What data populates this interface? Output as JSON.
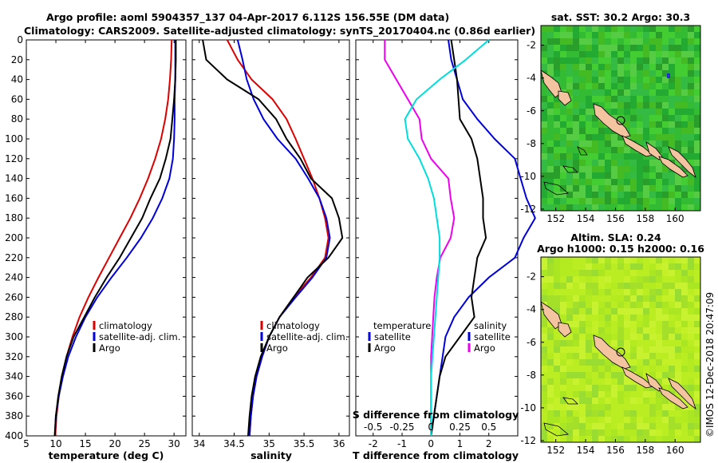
{
  "header": {
    "line1": "Argo profile: aoml 5904357_137 04-Apr-2017 6.112S 156.55E (DM data)",
    "line2": "Climatology: CARS2009. Satellite-adjusted climatology: synTS_20170404.nc (0.86d earlier)"
  },
  "colors": {
    "climatology": "#dd0000",
    "satellite": "#0000dd",
    "argo": "#000000",
    "s_diff": "#ee00ee",
    "t_diff": "#00dddd"
  },
  "chart_data": [
    {
      "type": "line",
      "id": "temperature",
      "xlabel": "temperature (deg C)",
      "ylabel": "",
      "xlim": [
        5,
        32
      ],
      "ylim": [
        400,
        0
      ],
      "xticks": [
        "5",
        "10",
        "15",
        "20",
        "25",
        "30"
      ],
      "yticks": [
        "0",
        "20",
        "40",
        "60",
        "80",
        "100",
        "120",
        "140",
        "160",
        "180",
        "200",
        "220",
        "240",
        "260",
        "280",
        "300",
        "320",
        "340",
        "360",
        "380",
        "400"
      ],
      "legend": [
        "climatology",
        "satellite-adj. clim.",
        "Argo"
      ],
      "series": [
        {
          "name": "climatology",
          "color": "#dd0000",
          "depth": [
            0,
            20,
            40,
            60,
            80,
            100,
            120,
            140,
            160,
            180,
            200,
            220,
            240,
            260,
            280,
            300,
            320,
            340,
            360,
            380,
            400
          ],
          "values": [
            29.6,
            29.5,
            29.3,
            29.0,
            28.5,
            27.8,
            26.8,
            25.6,
            24.2,
            22.6,
            20.8,
            19.0,
            17.2,
            15.5,
            14.0,
            12.8,
            11.8,
            11.0,
            10.5,
            10.1,
            9.9
          ]
        },
        {
          "name": "satellite-adj. clim.",
          "color": "#0000dd",
          "depth": [
            0,
            20,
            40,
            60,
            80,
            100,
            120,
            140,
            160,
            180,
            200,
            220,
            240,
            260,
            280,
            300,
            320,
            340,
            360,
            380,
            400
          ],
          "values": [
            30.2,
            30.2,
            30.2,
            30.1,
            30.1,
            30.0,
            29.8,
            29.2,
            28.0,
            26.4,
            24.4,
            22.0,
            19.4,
            17.0,
            15.0,
            13.4,
            12.1,
            11.2,
            10.5,
            10.0,
            9.8
          ]
        },
        {
          "name": "Argo",
          "color": "#000000",
          "depth": [
            0,
            20,
            40,
            60,
            80,
            100,
            120,
            140,
            160,
            180,
            200,
            220,
            240,
            260,
            280,
            300,
            320,
            340,
            360,
            380,
            400
          ],
          "values": [
            30.3,
            30.3,
            30.2,
            30.0,
            29.7,
            29.4,
            28.6,
            27.6,
            26.0,
            24.6,
            22.7,
            20.8,
            18.6,
            16.6,
            14.8,
            13.0,
            11.8,
            11.0,
            10.4,
            10.0,
            9.8
          ]
        }
      ]
    },
    {
      "type": "line",
      "id": "salinity",
      "xlabel": "salinity",
      "ylabel": "",
      "xlim": [
        33.9,
        36.15
      ],
      "ylim": [
        400,
        0
      ],
      "xticks": [
        "34",
        "34.5",
        "35",
        "35.5",
        "36"
      ],
      "legend": [
        "climatology",
        "satellite-adj. clim.",
        "Argo"
      ],
      "series": [
        {
          "name": "climatology",
          "color": "#dd0000",
          "depth": [
            0,
            20,
            40,
            60,
            80,
            100,
            120,
            140,
            160,
            180,
            200,
            220,
            240,
            260,
            280,
            300,
            320,
            340,
            360,
            380,
            400
          ],
          "values": [
            34.4,
            34.55,
            34.75,
            35.05,
            35.25,
            35.38,
            35.5,
            35.62,
            35.72,
            35.8,
            35.85,
            35.8,
            35.6,
            35.35,
            35.15,
            35.0,
            34.9,
            34.82,
            34.77,
            34.74,
            34.72
          ]
        },
        {
          "name": "satellite-adj. clim.",
          "color": "#0000dd",
          "depth": [
            0,
            20,
            40,
            60,
            80,
            100,
            120,
            140,
            160,
            180,
            200,
            220,
            240,
            260,
            280,
            300,
            320,
            340,
            360,
            380,
            400
          ],
          "values": [
            34.55,
            34.62,
            34.68,
            34.78,
            34.92,
            35.12,
            35.38,
            35.56,
            35.72,
            35.82,
            35.87,
            35.82,
            35.62,
            35.38,
            35.15,
            35.0,
            34.9,
            34.82,
            34.77,
            34.74,
            34.72
          ]
        },
        {
          "name": "Argo",
          "color": "#000000",
          "depth": [
            0,
            20,
            40,
            60,
            80,
            100,
            120,
            140,
            160,
            180,
            200,
            220,
            240,
            260,
            280,
            300,
            320,
            340,
            360,
            380,
            400
          ],
          "values": [
            34.05,
            34.1,
            34.4,
            34.85,
            35.1,
            35.25,
            35.45,
            35.6,
            35.9,
            36.0,
            36.05,
            35.85,
            35.55,
            35.35,
            35.15,
            35.0,
            34.88,
            34.8,
            34.75,
            34.72,
            34.7
          ]
        }
      ]
    },
    {
      "type": "line",
      "id": "differences",
      "xlabel": "T difference from climatology",
      "xlabel_top": "S difference from climatology",
      "xlim": [
        -2.6,
        3.0
      ],
      "ylim": [
        400,
        0
      ],
      "xticks": [
        "-2",
        "-1",
        "0",
        "1",
        "2"
      ],
      "xticks_s": [
        "-0.5",
        "-0.25",
        "0",
        "0.25",
        "0.5"
      ],
      "legend_t": [
        "temperature",
        "satellite",
        "Argo"
      ],
      "legend_s": [
        "salinity",
        "satellite",
        "Argo"
      ],
      "series": [
        {
          "name": "T satellite",
          "color": "#0000dd",
          "depth": [
            0,
            20,
            40,
            60,
            80,
            100,
            120,
            140,
            160,
            180,
            200,
            220,
            240,
            260,
            280,
            300,
            320,
            340,
            360,
            380,
            400
          ],
          "values": [
            0.6,
            0.7,
            0.9,
            1.1,
            1.6,
            2.2,
            2.9,
            3.1,
            3.3,
            3.6,
            3.2,
            2.9,
            2.0,
            1.3,
            0.8,
            0.5,
            0.4,
            0.3,
            0.2,
            0.1,
            0.0
          ]
        },
        {
          "name": "T Argo",
          "color": "#000000",
          "depth": [
            0,
            20,
            40,
            60,
            80,
            100,
            120,
            140,
            160,
            180,
            200,
            220,
            240,
            260,
            280,
            300,
            320,
            340,
            360,
            380,
            400
          ],
          "values": [
            0.7,
            0.8,
            0.9,
            0.95,
            1.0,
            1.4,
            1.6,
            1.7,
            1.8,
            1.8,
            1.9,
            1.6,
            1.5,
            1.4,
            1.5,
            1.0,
            0.5,
            0.3,
            0.2,
            0.1,
            0.0
          ]
        },
        {
          "name": "S Argo",
          "color": "#ee00ee",
          "depth": [
            0,
            20,
            40,
            60,
            80,
            100,
            120,
            140,
            160,
            180,
            200,
            220,
            240,
            260,
            280,
            300,
            320,
            340,
            360,
            380,
            400
          ],
          "values": [
            -0.4,
            -0.4,
            -0.3,
            -0.2,
            -0.1,
            -0.08,
            0.0,
            0.15,
            0.17,
            0.2,
            0.17,
            0.08,
            0.05,
            0.03,
            0.02,
            0.01,
            0.0,
            0.0,
            0.0,
            0.0,
            0.0
          ]
        },
        {
          "name": "T difference",
          "color": "#00dddd",
          "depth": [
            0,
            20,
            40,
            60,
            80,
            100,
            120,
            140,
            160,
            180,
            200,
            220,
            240,
            260,
            280,
            300,
            320,
            340,
            360,
            380,
            400
          ],
          "values": [
            2.0,
            1.2,
            0.3,
            -0.5,
            -0.9,
            -0.8,
            -0.4,
            -0.1,
            0.1,
            0.2,
            0.3,
            0.3,
            0.25,
            0.2,
            0.15,
            0.1,
            0.05,
            0.0,
            0.0,
            0.0,
            0.0
          ]
        }
      ]
    }
  ],
  "maps": {
    "sst": {
      "title": "sat. SST: 30.2 Argo: 30.3",
      "xticks": [
        "152",
        "154",
        "156",
        "158",
        "160"
      ],
      "yticks": [
        "-2",
        "-4",
        "-6",
        "-8",
        "-10",
        "-12"
      ]
    },
    "sla": {
      "title1": "Altim. SLA: 0.24",
      "title2": "Argo h1000: 0.15 h2000: 0.16",
      "xticks": [
        "152",
        "154",
        "156",
        "158",
        "160"
      ],
      "yticks": [
        "-2",
        "-4",
        "-6",
        "-8",
        "-10",
        "-12"
      ]
    },
    "credit": "©IMOS 12-Dec-2018 20:47:09"
  }
}
